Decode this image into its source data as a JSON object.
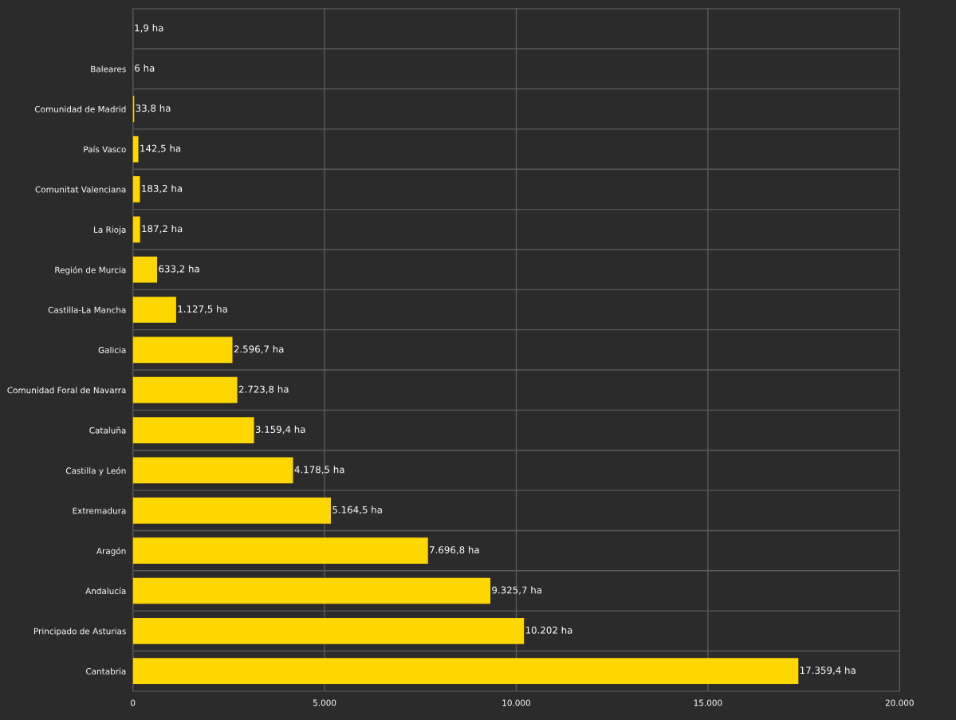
{
  "chart_data": {
    "type": "bar",
    "orientation": "horizontal",
    "categories": [
      null,
      "Baleares",
      "Comunidad de Madrid",
      "País Vasco",
      "Comunitat Valenciana",
      "La Rioja",
      "Región de Murcia",
      "Castilla-La Mancha",
      "Galicia",
      "Comunidad Foral de Navarra",
      "Cataluña",
      "Castilla y León",
      "Extremadura",
      "Aragón",
      "Andalucía",
      "Principado de Asturias",
      "Cantabria"
    ],
    "values": [
      1.9,
      6,
      33.8,
      142.5,
      183.2,
      187.2,
      633.2,
      1127.5,
      2596.7,
      2723.8,
      3159.4,
      4178.5,
      5164.5,
      7696.8,
      9325.7,
      10202,
      17359.4
    ],
    "value_labels": [
      "1,9 ha",
      "6 ha",
      "33,8 ha",
      "142,5 ha",
      "183,2 ha",
      "187,2 ha",
      "633,2 ha",
      "1.127,5 ha",
      "2.596,7 ha",
      "2.723,8 ha",
      "3.159,4 ha",
      "4.178,5 ha",
      "5.164,5 ha",
      "7.696,8 ha",
      "9.325,7 ha",
      "10.202 ha",
      "17.359,4 ha"
    ],
    "color": "#ffd700",
    "xlim": [
      0,
      20000
    ],
    "xticks": [
      0,
      {
        "value": 5000,
        "label": "5.000"
      },
      {
        "value": 10000,
        "label": "10.000"
      },
      {
        "value": 15000,
        "label": "15.000"
      },
      {
        "value": 20000,
        "label": "20.000"
      }
    ],
    "grid": true
  }
}
